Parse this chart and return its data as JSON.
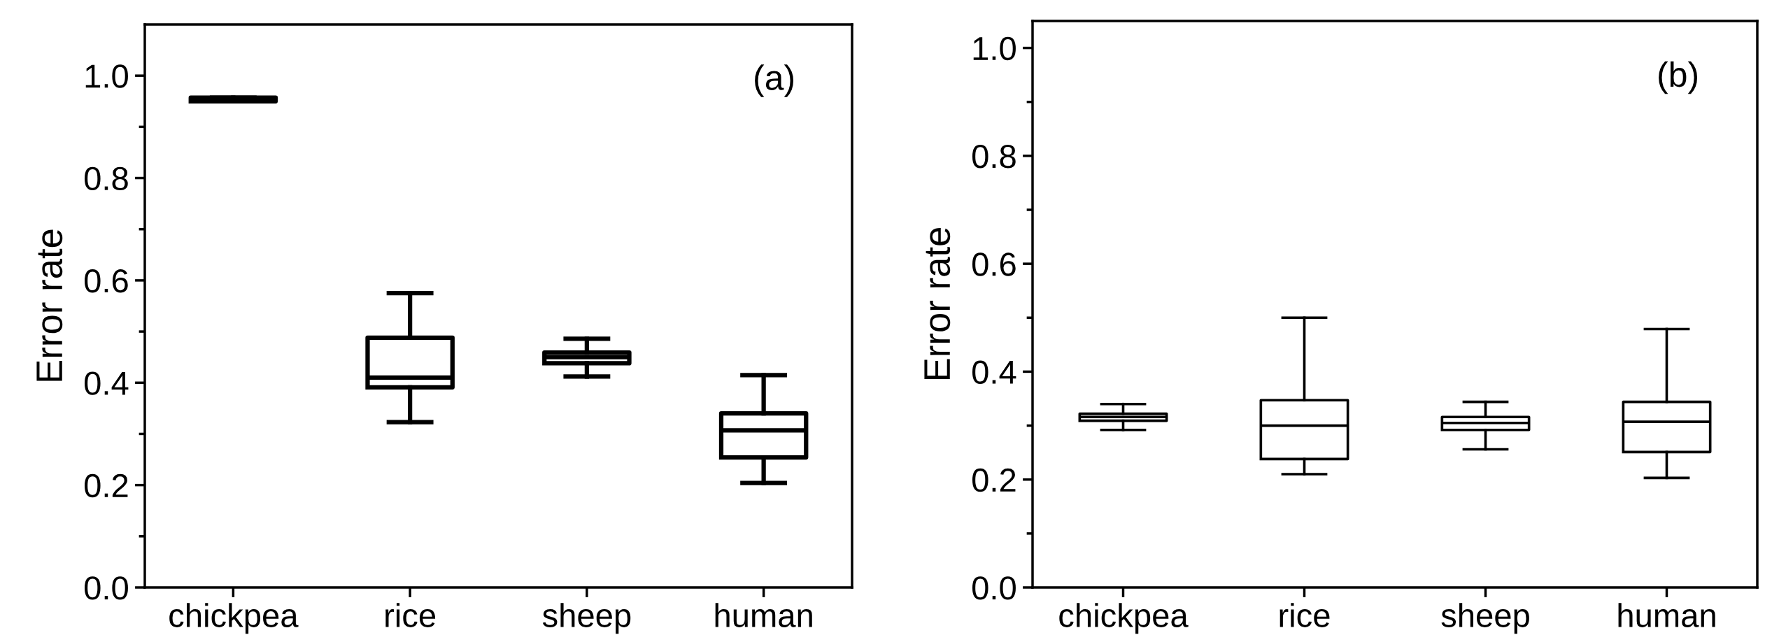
{
  "chart_data": [
    {
      "type": "box",
      "ylabel": "Error rate",
      "annotations": [
        "(a)"
      ],
      "categories": [
        "chickpea",
        "rice",
        "sheep",
        "human"
      ],
      "boxes": [
        {
          "low": 0.95,
          "q1": 0.95,
          "median": 0.953,
          "q3": 0.957,
          "high": 0.957
        },
        {
          "low": 0.323,
          "q1": 0.391,
          "median": 0.41,
          "q3": 0.488,
          "high": 0.575
        },
        {
          "low": 0.412,
          "q1": 0.438,
          "median": 0.45,
          "q3": 0.459,
          "high": 0.486
        },
        {
          "low": 0.204,
          "q1": 0.254,
          "median": 0.307,
          "q3": 0.34,
          "high": 0.415
        }
      ],
      "ylim": [
        0,
        1.1
      ],
      "yticks": [
        {
          "value": 0,
          "label": "0.0"
        },
        {
          "value": 0.1,
          "label": null
        },
        0.2,
        {
          "value": 0.3,
          "label": null
        },
        0.4,
        {
          "value": 0.5,
          "label": null
        },
        0.6,
        {
          "value": 0.7,
          "label": null
        },
        0.8,
        {
          "value": 0.9,
          "label": null
        },
        {
          "value": 1.0,
          "label": "1.0"
        }
      ],
      "grid": false
    },
    {
      "type": "box",
      "ylabel": "Error rate",
      "annotations": [
        "(b)"
      ],
      "categories": [
        "chickpea",
        "rice",
        "sheep",
        "human"
      ],
      "boxes": [
        {
          "low": 0.292,
          "q1": 0.309,
          "median": 0.316,
          "q3": 0.322,
          "high": 0.34
        },
        {
          "low": 0.21,
          "q1": 0.238,
          "median": 0.3,
          "q3": 0.347,
          "high": 0.5
        },
        {
          "low": 0.256,
          "q1": 0.292,
          "median": 0.305,
          "q3": 0.316,
          "high": 0.344
        },
        {
          "low": 0.203,
          "q1": 0.251,
          "median": 0.307,
          "q3": 0.344,
          "high": 0.479
        }
      ],
      "ylim": [
        0,
        1.05
      ],
      "yticks": [
        {
          "value": 0,
          "label": "0.0"
        },
        {
          "value": 0.1,
          "label": null
        },
        0.2,
        {
          "value": 0.3,
          "label": null
        },
        0.4,
        {
          "value": 0.5,
          "label": null
        },
        0.6,
        {
          "value": 0.7,
          "label": null
        },
        0.8,
        {
          "value": 0.9,
          "label": null
        },
        {
          "value": 1.0,
          "label": "1.0"
        }
      ],
      "grid": false
    }
  ]
}
